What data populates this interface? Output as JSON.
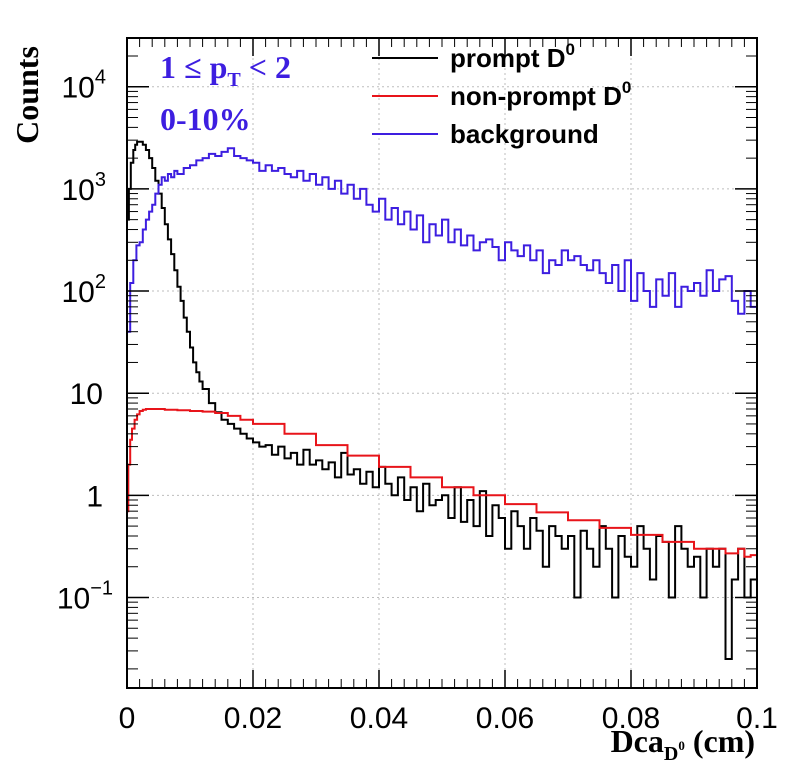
{
  "chart_data": {
    "type": "line",
    "title": "",
    "xlabel": {
      "base": "Dca",
      "sub": "D",
      "subsup": "0",
      "unit": "(cm)"
    },
    "ylabel": "Counts",
    "xlim": [
      0,
      0.1
    ],
    "ylim": [
      0.013,
      30000
    ],
    "y_scale": "log",
    "grid": true,
    "x_ticks": [
      {
        "value": 0,
        "label": "0"
      },
      {
        "value": 0.02,
        "label": "0.02"
      },
      {
        "value": 0.04,
        "label": "0.04"
      },
      {
        "value": 0.06,
        "label": "0.06"
      },
      {
        "value": 0.08,
        "label": "0.08"
      },
      {
        "value": 0.1,
        "label": "0.1"
      }
    ],
    "y_ticks": [
      {
        "value": 0.1,
        "base": "10",
        "exp": "−1"
      },
      {
        "value": 1,
        "base": "1",
        "exp": ""
      },
      {
        "value": 10,
        "base": "10",
        "exp": ""
      },
      {
        "value": 100,
        "base": "10",
        "exp": "2"
      },
      {
        "value": 1000,
        "base": "10",
        "exp": "3"
      },
      {
        "value": 10000,
        "base": "10",
        "exp": "4"
      }
    ],
    "annotations": [
      {
        "parts": [
          "1 ≤ p",
          "T",
          " < 2"
        ],
        "color": "#3d1ee0"
      },
      {
        "parts": [
          "0-10%"
        ],
        "color": "#3d1ee0"
      }
    ],
    "legend": {
      "placement": "top-right",
      "entries": [
        {
          "label": "prompt D",
          "sup": "0",
          "color": "#000000"
        },
        {
          "label": "non-prompt D",
          "sup": "0",
          "color": "#e8141a"
        },
        {
          "label": "background",
          "sup": "",
          "color": "#3d1ee0"
        }
      ]
    },
    "series": [
      {
        "name": "prompt D0",
        "color": "#000000",
        "x": [
          0.0,
          0.0003,
          0.0006,
          0.001,
          0.0013,
          0.0016,
          0.002,
          0.0025,
          0.003,
          0.0035,
          0.004,
          0.0045,
          0.005,
          0.0055,
          0.006,
          0.0065,
          0.007,
          0.0075,
          0.008,
          0.0085,
          0.009,
          0.0095,
          0.01,
          0.0105,
          0.011,
          0.0115,
          0.012,
          0.013,
          0.014,
          0.015,
          0.016,
          0.017,
          0.018,
          0.019,
          0.02,
          0.021,
          0.022,
          0.023,
          0.024,
          0.025,
          0.026,
          0.027,
          0.028,
          0.029,
          0.03,
          0.031,
          0.032,
          0.033,
          0.034,
          0.035,
          0.036,
          0.037,
          0.038,
          0.039,
          0.04,
          0.041,
          0.042,
          0.043,
          0.044,
          0.045,
          0.046,
          0.047,
          0.048,
          0.049,
          0.05,
          0.051,
          0.052,
          0.053,
          0.054,
          0.055,
          0.056,
          0.057,
          0.058,
          0.059,
          0.06,
          0.061,
          0.062,
          0.063,
          0.064,
          0.065,
          0.066,
          0.067,
          0.068,
          0.069,
          0.07,
          0.071,
          0.072,
          0.073,
          0.074,
          0.075,
          0.076,
          0.077,
          0.078,
          0.079,
          0.08,
          0.081,
          0.082,
          0.083,
          0.084,
          0.085,
          0.086,
          0.087,
          0.088,
          0.089,
          0.09,
          0.091,
          0.092,
          0.093,
          0.094,
          0.095,
          0.096,
          0.097,
          0.098,
          0.099,
          0.1
        ],
        "values": [
          500,
          1000,
          1800,
          2400,
          2700,
          2900,
          2900,
          2700,
          2400,
          2000,
          1600,
          1200,
          900,
          650,
          450,
          320,
          230,
          160,
          110,
          80,
          55,
          40,
          28,
          20,
          16,
          13,
          11,
          8,
          6.5,
          5.5,
          5.0,
          4.5,
          4.0,
          3.6,
          3.3,
          3.0,
          3.1,
          2.5,
          3.0,
          2.3,
          2.6,
          2.0,
          2.8,
          2.0,
          2.2,
          1.8,
          2.1,
          1.5,
          2.6,
          1.6,
          1.8,
          1.3,
          1.7,
          1.2,
          1.9,
          1.3,
          1.0,
          1.5,
          0.9,
          1.2,
          0.7,
          1.3,
          0.8,
          0.9,
          1.0,
          0.6,
          1.2,
          0.55,
          0.9,
          0.5,
          1.1,
          0.4,
          0.8,
          0.6,
          0.3,
          0.7,
          0.5,
          0.3,
          0.6,
          0.45,
          0.2,
          0.5,
          0.4,
          0.3,
          0.4,
          0.1,
          0.45,
          0.3,
          0.2,
          0.5,
          0.3,
          0.1,
          0.4,
          0.25,
          0.2,
          0.5,
          0.3,
          0.15,
          0.4,
          0.35,
          0.1,
          0.5,
          0.3,
          0.2,
          0.25,
          0.1,
          0.3,
          0.2,
          0.3,
          0.025,
          0.15,
          0.3,
          0.1,
          0.15,
          0.08
        ]
      },
      {
        "name": "non-prompt D0",
        "color": "#e8141a",
        "x": [
          0.0,
          0.0002,
          0.0005,
          0.0008,
          0.0012,
          0.0016,
          0.002,
          0.0025,
          0.003,
          0.004,
          0.005,
          0.006,
          0.008,
          0.01,
          0.012,
          0.014,
          0.016,
          0.018,
          0.02,
          0.025,
          0.03,
          0.035,
          0.04,
          0.045,
          0.05,
          0.055,
          0.06,
          0.065,
          0.07,
          0.075,
          0.08,
          0.085,
          0.09,
          0.095,
          0.097,
          0.098,
          0.099,
          0.1
        ],
        "values": [
          0.7,
          2.0,
          3.5,
          4.5,
          5.5,
          6.2,
          6.7,
          6.9,
          7.0,
          7.0,
          7.0,
          6.9,
          6.8,
          6.7,
          6.6,
          6.4,
          6.0,
          5.5,
          5.0,
          4.0,
          3.1,
          2.45,
          1.9,
          1.5,
          1.2,
          1.0,
          0.82,
          0.68,
          0.57,
          0.48,
          0.41,
          0.35,
          0.3,
          0.27,
          0.3,
          0.25,
          0.26,
          0.24
        ]
      },
      {
        "name": "background",
        "color": "#3d1ee0",
        "x": [
          0.0,
          0.0005,
          0.001,
          0.0015,
          0.002,
          0.0025,
          0.003,
          0.0035,
          0.004,
          0.0045,
          0.005,
          0.0055,
          0.006,
          0.0065,
          0.007,
          0.0075,
          0.008,
          0.009,
          0.01,
          0.011,
          0.012,
          0.013,
          0.014,
          0.015,
          0.016,
          0.017,
          0.018,
          0.019,
          0.02,
          0.021,
          0.022,
          0.023,
          0.024,
          0.025,
          0.026,
          0.027,
          0.028,
          0.029,
          0.03,
          0.031,
          0.032,
          0.033,
          0.034,
          0.035,
          0.036,
          0.037,
          0.038,
          0.039,
          0.04,
          0.041,
          0.042,
          0.043,
          0.044,
          0.045,
          0.046,
          0.047,
          0.048,
          0.049,
          0.05,
          0.051,
          0.052,
          0.053,
          0.054,
          0.055,
          0.056,
          0.057,
          0.058,
          0.059,
          0.06,
          0.061,
          0.062,
          0.063,
          0.064,
          0.065,
          0.066,
          0.067,
          0.068,
          0.069,
          0.07,
          0.071,
          0.072,
          0.073,
          0.074,
          0.075,
          0.076,
          0.077,
          0.078,
          0.079,
          0.08,
          0.081,
          0.082,
          0.083,
          0.084,
          0.085,
          0.086,
          0.087,
          0.088,
          0.089,
          0.09,
          0.091,
          0.092,
          0.093,
          0.094,
          0.095,
          0.096,
          0.097,
          0.098,
          0.099,
          0.1
        ],
        "values": [
          40,
          120,
          200,
          280,
          300,
          400,
          500,
          600,
          700,
          900,
          1100,
          1300,
          1200,
          1400,
          1300,
          1500,
          1400,
          1600,
          1700,
          1900,
          2000,
          2200,
          2100,
          2300,
          2500,
          2100,
          2000,
          1900,
          1800,
          1500,
          1700,
          1500,
          1600,
          1400,
          1300,
          1500,
          1200,
          1400,
          1100,
          1300,
          1000,
          1200,
          900,
          1100,
          800,
          1000,
          700,
          600,
          800,
          500,
          650,
          450,
          600,
          400,
          550,
          300,
          450,
          350,
          500,
          300,
          400,
          280,
          350,
          250,
          300,
          320,
          270,
          200,
          300,
          250,
          220,
          280,
          200,
          250,
          150,
          200,
          180,
          250,
          200,
          220,
          180,
          160,
          200,
          150,
          120,
          180,
          100,
          200,
          80,
          150,
          100,
          70,
          130,
          90,
          150,
          70,
          110,
          100,
          120,
          90,
          160,
          100,
          130,
          140,
          80,
          60,
          100,
          70,
          90
        ]
      }
    ]
  }
}
